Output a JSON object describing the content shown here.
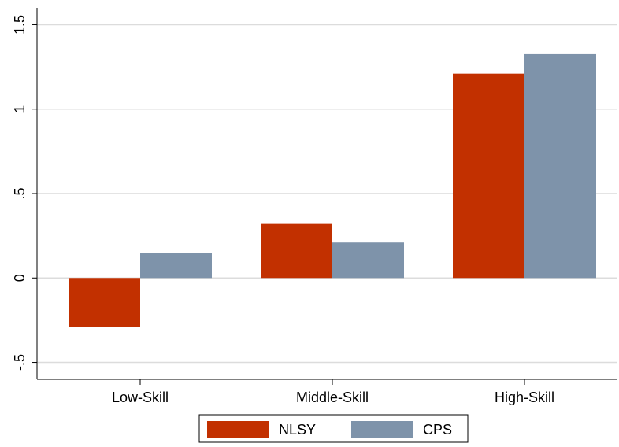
{
  "chart_data": {
    "type": "bar",
    "categories": [
      "Low-Skill",
      "Middle-Skill",
      "High-Skill"
    ],
    "series": [
      {
        "name": "NLSY",
        "color": "#c23000",
        "values": [
          -0.29,
          0.32,
          1.21
        ]
      },
      {
        "name": "CPS",
        "color": "#7e93aa",
        "values": [
          0.15,
          0.21,
          1.33
        ]
      }
    ],
    "ylim": [
      -0.6,
      1.6
    ],
    "yticks": [
      {
        "value": -0.5,
        "label": "-.5"
      },
      0,
      {
        "value": 0.5,
        "label": ".5"
      },
      1,
      {
        "value": 1.5,
        "label": "1.5"
      }
    ],
    "grid": true,
    "legend": "bottom"
  }
}
